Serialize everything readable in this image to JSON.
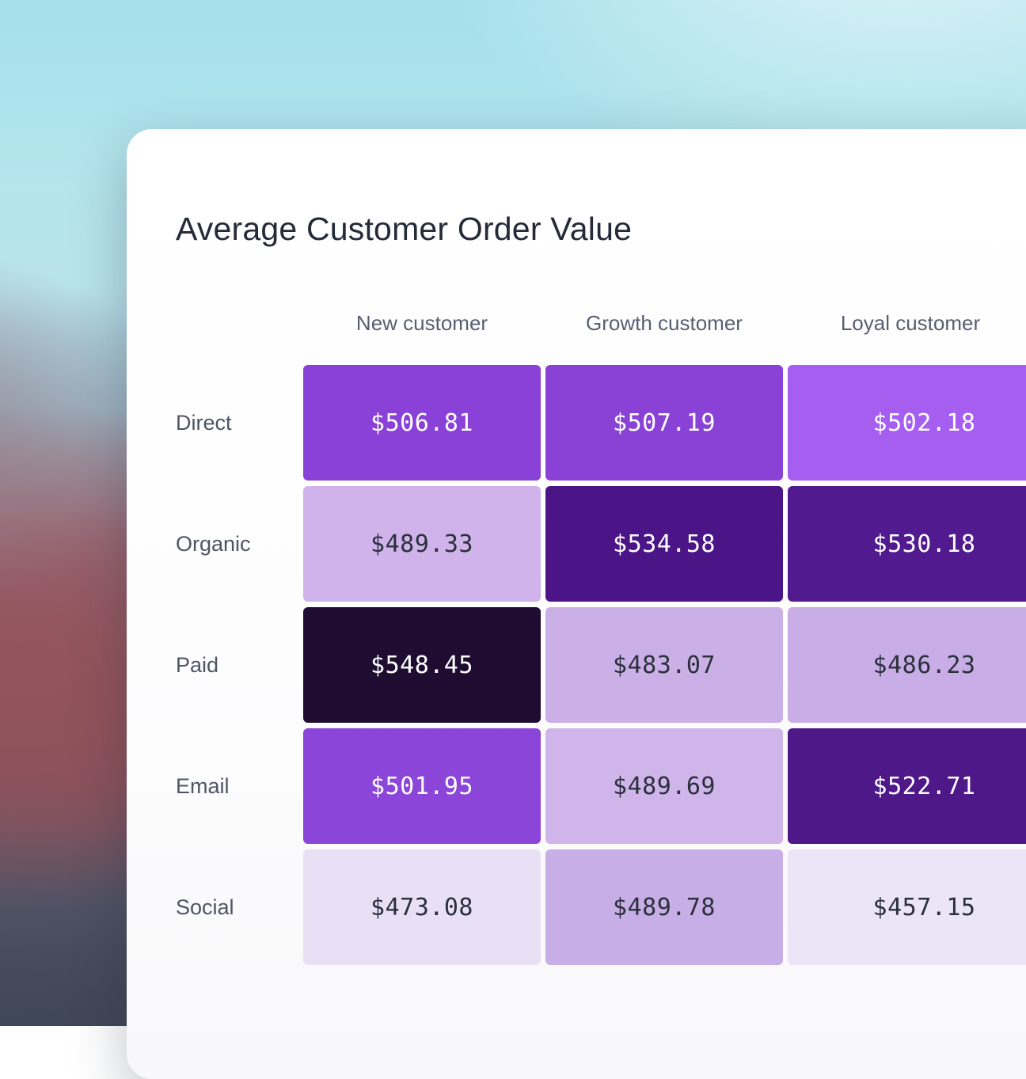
{
  "page": {
    "title": "Average Customer Order Value"
  },
  "chart_data": {
    "type": "heatmap",
    "title": "Average Customer Order Value",
    "columns": [
      "New customer",
      "Growth customer",
      "Loyal customer"
    ],
    "rows": [
      "Direct",
      "Organic",
      "Paid",
      "Email",
      "Social"
    ],
    "values": [
      [
        506.81,
        507.19,
        502.18
      ],
      [
        489.33,
        534.58,
        530.18
      ],
      [
        548.45,
        483.07,
        486.23
      ],
      [
        501.95,
        489.69,
        522.71
      ],
      [
        473.08,
        489.78,
        457.15
      ]
    ],
    "display_values": [
      [
        "$506.81",
        "$507.19",
        "$502.18"
      ],
      [
        "$489.33",
        "$534.58",
        "$530.18"
      ],
      [
        "$548.45",
        "$483.07",
        "$486.23"
      ],
      [
        "$501.95",
        "$489.69",
        "$522.71"
      ],
      [
        "$473.08",
        "$489.78",
        "$457.15"
      ]
    ],
    "cell_colors": [
      [
        "#8a41d7",
        "#8a42d6",
        "#a55ef0"
      ],
      [
        "#cfb3ea",
        "#4b1487",
        "#511a8e"
      ],
      [
        "#1e0d31",
        "#cbb0e8",
        "#c9ade6"
      ],
      [
        "#8b45d8",
        "#d0b5eb",
        "#4f1889"
      ],
      [
        "#eae0f5",
        "#c8aee6",
        "#ece4f7"
      ]
    ],
    "cell_text_colors": [
      [
        "#ffffff",
        "#ffffff",
        "#ffffff"
      ],
      [
        "#2b303d",
        "#ffffff",
        "#ffffff"
      ],
      [
        "#ffffff",
        "#2b303d",
        "#2b303d"
      ],
      [
        "#ffffff",
        "#2b303d",
        "#ffffff"
      ],
      [
        "#2b303d",
        "#2b303d",
        "#2b303d"
      ]
    ],
    "value_min": 457.15,
    "value_max": 548.45,
    "legend": "none",
    "grid": "off",
    "xlabel": "",
    "ylabel": ""
  },
  "theme": {
    "card_background": "#ffffff",
    "title_color": "#242a38",
    "header_color": "#575f71",
    "row_label_color": "#4d5565",
    "dark_cell_text": "#ffffff",
    "light_cell_text": "#2b303d"
  }
}
